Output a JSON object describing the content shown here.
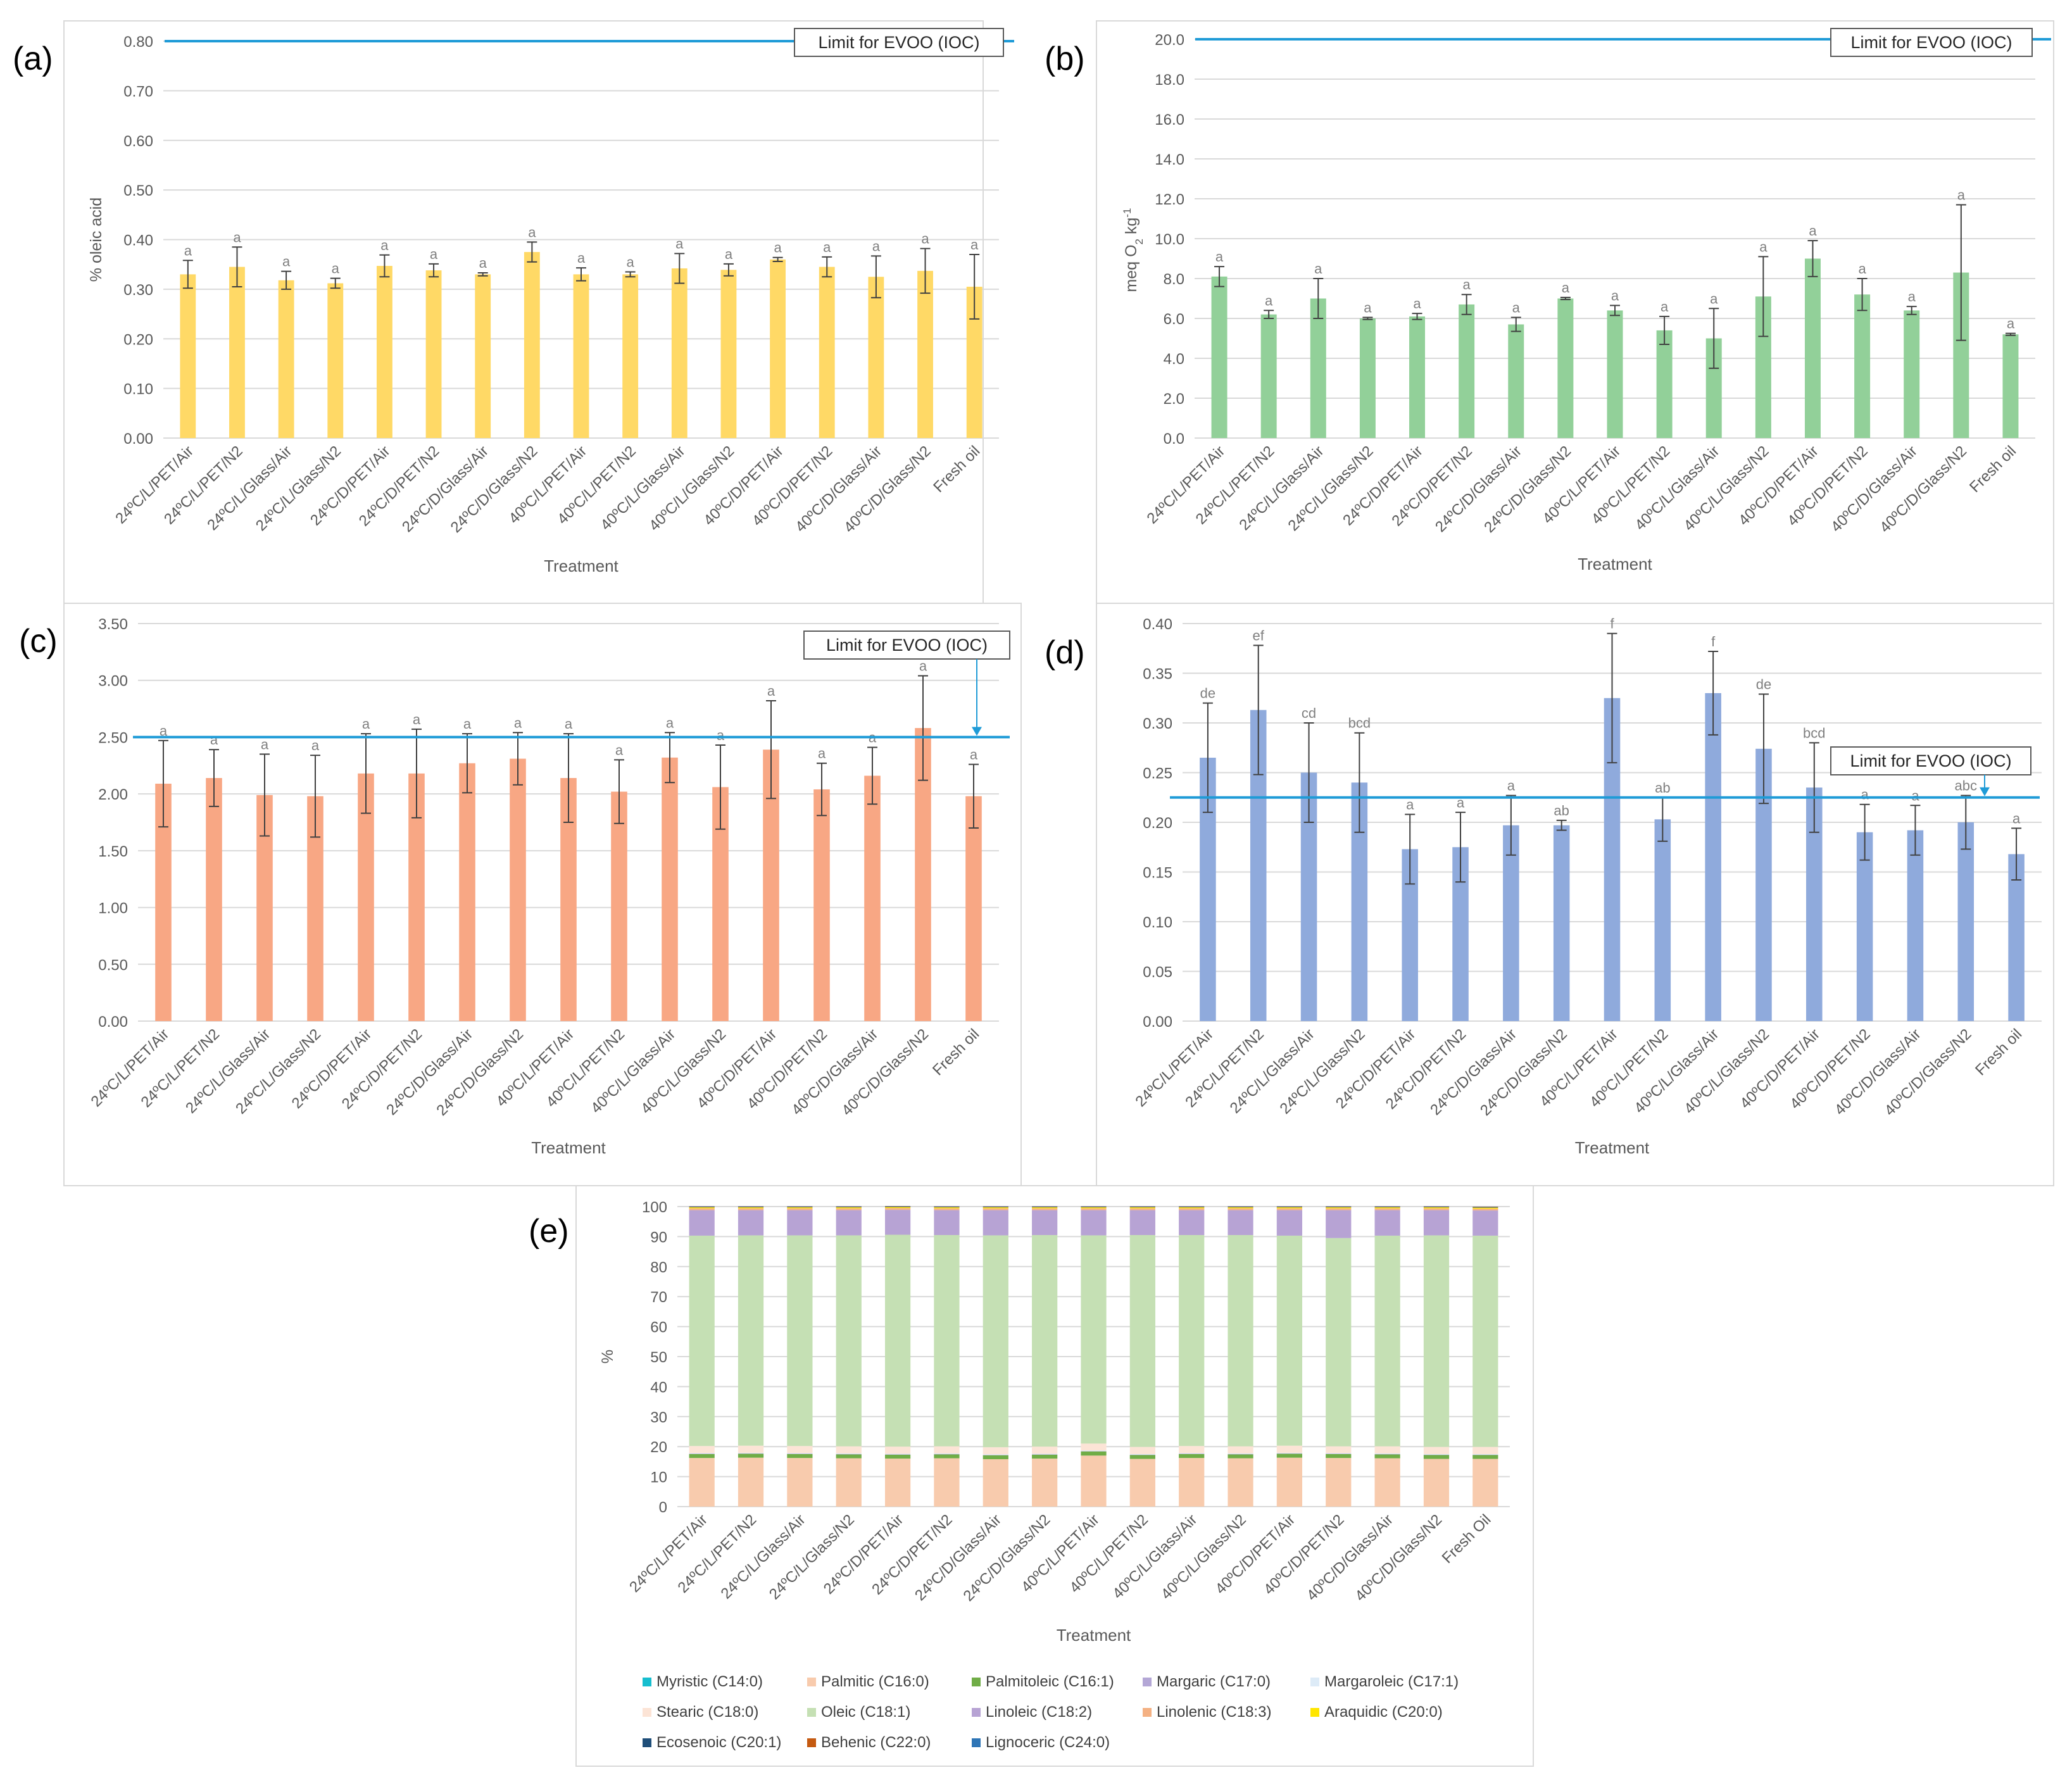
{
  "figure_labels": [
    "(a)",
    "(b)",
    "(c)",
    "(d)",
    "(e)"
  ],
  "chart_data": [
    {
      "panel": "(a)",
      "type": "bar",
      "xlabel": "Treatment",
      "ylabel": "% oleic acid",
      "ylim": [
        0,
        0.8
      ],
      "yticks": [
        "0.00",
        "0.10",
        "0.20",
        "0.30",
        "0.40",
        "0.50",
        "0.60",
        "0.70",
        "0.80"
      ],
      "limit_label": "Limit for EVOO (IOC)",
      "limit_value": 0.8,
      "bar_color": "#FFD966",
      "categories": [
        "24ºC/L/PET/Air",
        "24ºC/L/PET/N2",
        "24ºC/L/Glass/Air",
        "24ºC/L/Glass/N2",
        "24ºC/D/PET/Air",
        "24ºC/D/PET/N2",
        "24ºC/D/Glass/Air",
        "24ºC/D/Glass/N2",
        "40ºC/L/PET/Air",
        "40ºC/L/PET/N2",
        "40ºC/L/Glass/Air",
        "40ºC/L/Glass/N2",
        "40ºC/D/PET/Air",
        "40ºC/D/PET/N2",
        "40ºC/D/Glass/Air",
        "40ºC/D/Glass/N2",
        "Fresh oil"
      ],
      "values": [
        0.33,
        0.345,
        0.318,
        0.312,
        0.347,
        0.338,
        0.33,
        0.375,
        0.33,
        0.33,
        0.342,
        0.339,
        0.36,
        0.345,
        0.325,
        0.337,
        0.305
      ],
      "errors": [
        0.028,
        0.04,
        0.018,
        0.01,
        0.022,
        0.013,
        0.003,
        0.02,
        0.013,
        0.005,
        0.03,
        0.012,
        0.004,
        0.02,
        0.042,
        0.045,
        0.065
      ],
      "letters": [
        "a",
        "a",
        "a",
        "a",
        "a",
        "a",
        "a",
        "a",
        "a",
        "a",
        "a",
        "a",
        "a",
        "a",
        "a",
        "a",
        "a"
      ]
    },
    {
      "panel": "(b)",
      "type": "bar",
      "xlabel": "Treatment",
      "ylabel": "meq O2 kg-1",
      "ylabel_parts": {
        "a": "meq O",
        "b": "2",
        "c": " kg",
        "d": "-1"
      },
      "ylim": [
        0,
        20
      ],
      "yticks": [
        "0.0",
        "2.0",
        "4.0",
        "6.0",
        "8.0",
        "10.0",
        "12.0",
        "14.0",
        "16.0",
        "18.0",
        "20.0"
      ],
      "limit_label": "Limit for EVOO (IOC)",
      "limit_value": 20,
      "bar_color": "#92D099",
      "categories": [
        "24ºC/L/PET/Air",
        "24ºC/L/PET/N2",
        "24ºC/L/Glass/Air",
        "24ºC/L/Glass/N2",
        "24ºC/D/PET/Air",
        "24ºC/D/PET/N2",
        "24ºC/D/Glass/Air",
        "24ºC/D/Glass/N2",
        "40ºC/L/PET/Air",
        "40ºC/L/PET/N2",
        "40ºC/L/Glass/Air",
        "40ºC/L/Glass/N2",
        "40ºC/D/PET/Air",
        "40ºC/D/PET/N2",
        "40ºC/D/Glass/Air",
        "40ºC/D/Glass/N2",
        "Fresh oil"
      ],
      "values": [
        8.1,
        6.2,
        7.0,
        6.0,
        6.1,
        6.7,
        5.7,
        7.0,
        6.4,
        5.4,
        5.0,
        7.1,
        9.0,
        7.2,
        6.4,
        8.3,
        5.2
      ],
      "errors": [
        0.5,
        0.2,
        1.0,
        0.05,
        0.15,
        0.5,
        0.35,
        0.05,
        0.25,
        0.7,
        1.5,
        2.0,
        0.9,
        0.8,
        0.2,
        3.4,
        0.05
      ],
      "letters": [
        "a",
        "a",
        "a",
        "a",
        "a",
        "a",
        "a",
        "a",
        "a",
        "a",
        "a",
        "a",
        "a",
        "a",
        "a",
        "a",
        "a"
      ]
    },
    {
      "panel": "(c)",
      "type": "bar",
      "xlabel": "Treatment",
      "ylabel": "",
      "ylim": [
        0,
        3.5
      ],
      "yticks": [
        "0.00",
        "0.50",
        "1.00",
        "1.50",
        "2.00",
        "2.50",
        "3.00",
        "3.50"
      ],
      "limit_label": "Limit for EVOO (IOC)",
      "limit_value": 2.5,
      "bar_color": "#F8A784",
      "categories": [
        "24ºC/L/PET/Air",
        "24ºC/L/PET/N2",
        "24ºC/L/Glass/Air",
        "24ºC/L/Glass/N2",
        "24ºC/D/PET/Air",
        "24ºC/D/PET/N2",
        "24ºC/D/Glass/Air",
        "24ºC/D/Glass/N2",
        "40ºC/L/PET/Air",
        "40ºC/L/PET/N2",
        "40ºC/L/Glass/Air",
        "40ºC/L/Glass/N2",
        "40ºC/D/PET/Air",
        "40ºC/D/PET/N2",
        "40ºC/D/Glass/Air",
        "40ºC/D/Glass/N2",
        "Fresh oil"
      ],
      "values": [
        2.09,
        2.14,
        1.99,
        1.98,
        2.18,
        2.18,
        2.27,
        2.31,
        2.14,
        2.02,
        2.32,
        2.06,
        2.39,
        2.04,
        2.16,
        2.58,
        1.98
      ],
      "errors": [
        0.38,
        0.25,
        0.36,
        0.36,
        0.35,
        0.39,
        0.26,
        0.23,
        0.39,
        0.28,
        0.22,
        0.37,
        0.43,
        0.23,
        0.25,
        0.46,
        0.28
      ],
      "letters": [
        "a",
        "a",
        "a",
        "a",
        "a",
        "a",
        "a",
        "a",
        "a",
        "a",
        "a",
        "a",
        "a",
        "a",
        "a",
        "a",
        "a"
      ]
    },
    {
      "panel": "(d)",
      "type": "bar",
      "xlabel": "Treatment",
      "ylabel": "",
      "ylim": [
        0,
        0.4
      ],
      "yticks": [
        "0.00",
        "0.05",
        "0.10",
        "0.15",
        "0.20",
        "0.25",
        "0.30",
        "0.35",
        "0.40"
      ],
      "limit_label": "Limit for EVOO (IOC)",
      "limit_value": 0.225,
      "bar_color": "#8FAADC",
      "categories": [
        "24ºC/L/PET/Air",
        "24ºC/L/PET/N2",
        "24ºC/L/Glass/Air",
        "24ºC/L/Glass/N2",
        "24ºC/D/PET/Air",
        "24ºC/D/PET/N2",
        "24ºC/D/Glass/Air",
        "24ºC/D/Glass/N2",
        "40ºC/L/PET/Air",
        "40ºC/L/PET/N2",
        "40ºC/L/Glass/Air",
        "40ºC/L/Glass/N2",
        "40ºC/D/PET/Air",
        "40ºC/D/PET/N2",
        "40ºC/D/Glass/Air",
        "40ºC/D/Glass/N2",
        "Fresh oil"
      ],
      "values": [
        0.265,
        0.313,
        0.25,
        0.24,
        0.173,
        0.175,
        0.197,
        0.197,
        0.325,
        0.203,
        0.33,
        0.274,
        0.235,
        0.19,
        0.192,
        0.2,
        0.168
      ],
      "errors": [
        0.055,
        0.065,
        0.05,
        0.05,
        0.035,
        0.035,
        0.03,
        0.005,
        0.065,
        0.022,
        0.042,
        0.055,
        0.045,
        0.028,
        0.025,
        0.027,
        0.026
      ],
      "letters": [
        "de",
        "ef",
        "cd",
        "bcd",
        "a",
        "a",
        "a",
        "ab",
        "f",
        "ab",
        "f",
        "de",
        "bcd",
        "a",
        "a",
        "abc",
        "a"
      ]
    },
    {
      "panel": "(e)",
      "type": "bar",
      "stacked": true,
      "xlabel": "Treatment",
      "ylabel": "%",
      "ylim": [
        0,
        100
      ],
      "yticks": [
        "0",
        "10",
        "20",
        "30",
        "40",
        "50",
        "60",
        "70",
        "80",
        "90",
        "100"
      ],
      "categories": [
        "24ºC/L/PET/Air",
        "24ºC/L/PET/N2",
        "24ºC/L/Glass/Air",
        "24ºC/L/Glass/N2",
        "24ºC/D/PET/Air",
        "24ºC/D/PET/N2",
        "24ºC/D/Glass/Air",
        "24ºC/D/Glass/N2",
        "40ºC/L/PET/Air",
        "40ºC/L/PET/N2",
        "40ºC/L/Glass/Air",
        "40ºC/L/Glass/N2",
        "40ºC/D/PET/Air",
        "40ºC/D/PET/N2",
        "40ºC/D/Glass/Air",
        "40ºC/D/Glass/N2",
        "Fresh Oil"
      ],
      "series": [
        {
          "name": "Myristic (C14:0)",
          "color": "#17BECF",
          "values": [
            0.01,
            0.01,
            0.01,
            0.01,
            0.01,
            0.01,
            0.01,
            0.01,
            0.01,
            0.01,
            0.01,
            0.01,
            0.01,
            0.01,
            0.01,
            0.01,
            0.01
          ]
        },
        {
          "name": "Palmitic (C16:0)",
          "color": "#F8CBAD",
          "values": [
            16.2,
            16.3,
            16.2,
            16.1,
            16.0,
            16.1,
            15.8,
            16.0,
            17.0,
            15.9,
            16.2,
            16.1,
            16.3,
            16.2,
            16.1,
            15.9,
            15.9
          ]
        },
        {
          "name": "Palmitoleic (C16:1)",
          "color": "#70AD47",
          "values": [
            1.3,
            1.3,
            1.3,
            1.3,
            1.3,
            1.3,
            1.3,
            1.3,
            1.4,
            1.3,
            1.3,
            1.3,
            1.3,
            1.3,
            1.3,
            1.3,
            1.3
          ]
        },
        {
          "name": "Margaric (C17:0)",
          "color": "#B4A7D6",
          "values": [
            0.1,
            0.1,
            0.1,
            0.1,
            0.1,
            0.1,
            0.1,
            0.1,
            0.1,
            0.1,
            0.1,
            0.1,
            0.1,
            0.1,
            0.1,
            0.1,
            0.1
          ]
        },
        {
          "name": "Margaroleic (C17:1)",
          "color": "#DDEBF7",
          "values": [
            0.2,
            0.2,
            0.2,
            0.2,
            0.2,
            0.2,
            0.2,
            0.2,
            0.2,
            0.2,
            0.2,
            0.2,
            0.2,
            0.2,
            0.2,
            0.2,
            0.2
          ]
        },
        {
          "name": "Stearic (C18:0)",
          "color": "#FCE4D6",
          "values": [
            2.4,
            2.4,
            2.4,
            2.4,
            2.4,
            2.4,
            2.4,
            2.4,
            2.3,
            2.4,
            2.4,
            2.4,
            2.4,
            2.3,
            2.4,
            2.4,
            2.4
          ]
        },
        {
          "name": "Oleic (C18:1)",
          "color": "#C5E0B4",
          "values": [
            70.1,
            70.1,
            70.2,
            70.3,
            70.6,
            70.4,
            70.6,
            70.5,
            69.4,
            70.6,
            70.3,
            70.4,
            70.0,
            69.4,
            70.2,
            70.5,
            70.4
          ]
        },
        {
          "name": "Linoleic (C18:2)",
          "color": "#B7A3D4",
          "values": [
            8.5,
            8.4,
            8.4,
            8.4,
            8.3,
            8.3,
            8.4,
            8.3,
            8.4,
            8.3,
            8.3,
            8.3,
            8.5,
            9.3,
            8.5,
            8.4,
            8.4
          ]
        },
        {
          "name": "Linolenic (C18:3)",
          "color": "#F4B183",
          "values": [
            0.6,
            0.6,
            0.6,
            0.6,
            0.6,
            0.6,
            0.6,
            0.6,
            0.6,
            0.6,
            0.6,
            0.6,
            0.6,
            0.6,
            0.6,
            0.6,
            0.6
          ]
        },
        {
          "name": "Araquidic (C20:0)",
          "color": "#FFE600",
          "values": [
            0.35,
            0.35,
            0.35,
            0.35,
            0.35,
            0.35,
            0.35,
            0.35,
            0.35,
            0.35,
            0.35,
            0.35,
            0.35,
            0.35,
            0.35,
            0.35,
            0.35
          ]
        },
        {
          "name": "Ecosenoic (C20:1)",
          "color": "#1F4E79",
          "values": [
            0.2,
            0.2,
            0.2,
            0.2,
            0.2,
            0.2,
            0.2,
            0.2,
            0.2,
            0.2,
            0.2,
            0.2,
            0.2,
            0.2,
            0.2,
            0.2,
            0.2
          ]
        },
        {
          "name": "Behenic (C22:0)",
          "color": "#C55A11",
          "values": [
            0.1,
            0.1,
            0.1,
            0.1,
            0.1,
            0.1,
            0.1,
            0.1,
            0.1,
            0.1,
            0.1,
            0.1,
            0.1,
            0.1,
            0.1,
            0.1,
            0.1
          ]
        },
        {
          "name": "Lignoceric (C24:0)",
          "color": "#2E75B6",
          "values": [
            0.04,
            0.04,
            0.04,
            0.04,
            0.04,
            0.04,
            0.04,
            0.04,
            0.04,
            0.04,
            0.04,
            0.04,
            0.04,
            0.04,
            0.04,
            0.04,
            0.04
          ]
        }
      ]
    }
  ]
}
